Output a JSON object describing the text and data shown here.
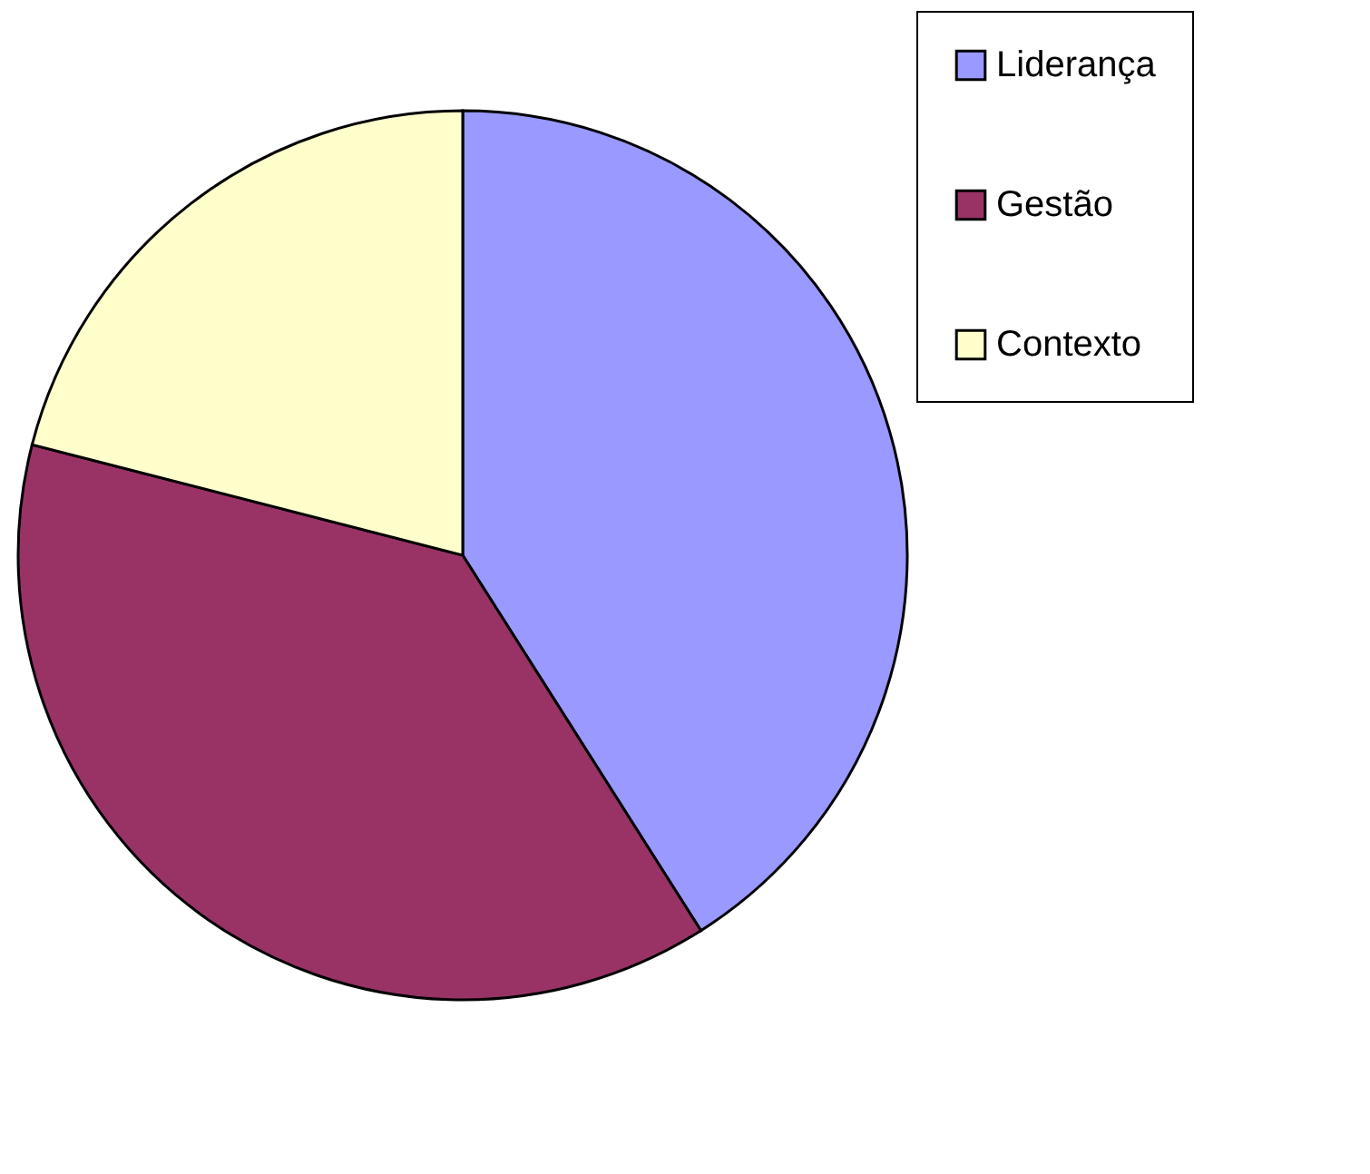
{
  "chart_data": {
    "type": "pie",
    "categories": [
      "Liderança",
      "Gestão",
      "Contexto"
    ],
    "values": [
      41,
      38,
      21
    ],
    "colors": [
      "#9999ff",
      "#993366",
      "#ffffcc"
    ],
    "legend": "right"
  }
}
